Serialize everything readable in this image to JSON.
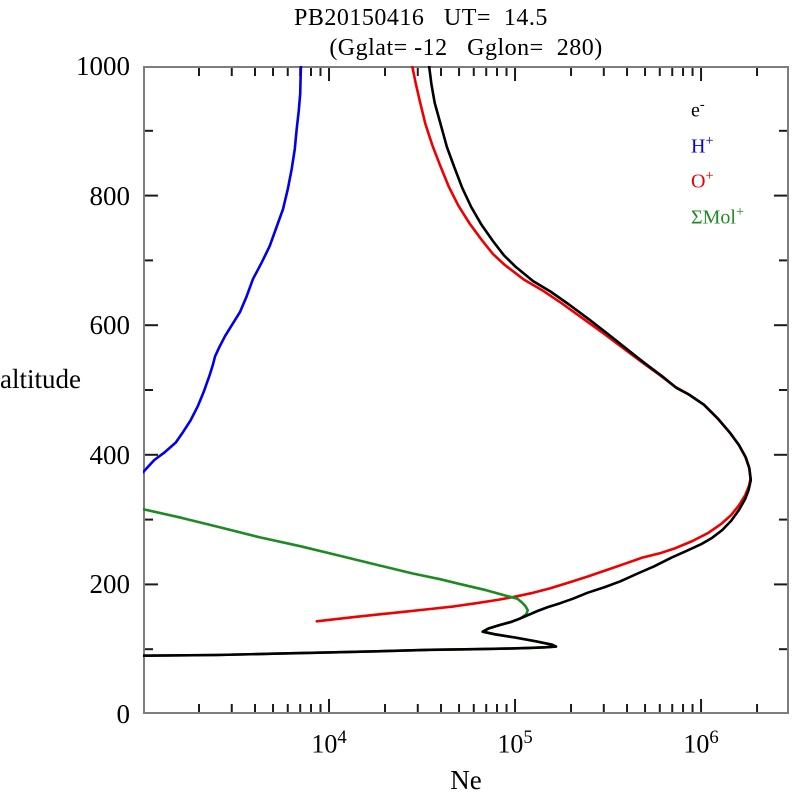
{
  "figure": {
    "title": "PB20150416   UT=  14.5",
    "subtitle": "(Gglat= -12   Gglon=  280)"
  },
  "axes": {
    "ylabel": "altitude",
    "xlabel": "Ne",
    "y_tick_labels": [
      1000,
      800,
      600,
      400,
      200,
      0
    ],
    "x_tick_labels": [
      {
        "base": "10",
        "sup": "4",
        "value": 10000
      },
      {
        "base": "10",
        "sup": "5",
        "value": 100000
      },
      {
        "base": "10",
        "sup": "6",
        "value": 1000000
      }
    ]
  },
  "legend": {
    "items": [
      {
        "base": "e",
        "sup": "-",
        "color": "#000000"
      },
      {
        "base": "H",
        "sup": "+",
        "color": "#0000ee"
      },
      {
        "base": "O",
        "sup": "+",
        "color": "#ee0000"
      },
      {
        "base": "ΣMol",
        "sup": "+",
        "color": "#1e8b22"
      }
    ]
  },
  "chart_data": {
    "type": "line",
    "title": "PB20150416 UT= 14.5",
    "subtitle": "(Gglat= -12 Gglon= 280)",
    "xlabel": "Ne",
    "ylabel": "altitude",
    "xscale": "log",
    "xlim": [
      1000,
      2970000
    ],
    "ylim": [
      0,
      1000
    ],
    "grid": false,
    "legend_position": "upper right inside",
    "frame_color": "#7d7d7d",
    "tick_color": "#1a1a1a",
    "x_major_ticks": [
      10000,
      100000,
      1000000
    ],
    "x_minor_ticks": [
      2000,
      3000,
      4000,
      5000,
      6000,
      7000,
      8000,
      9000,
      20000,
      30000,
      40000,
      50000,
      60000,
      70000,
      80000,
      90000,
      200000,
      300000,
      400000,
      500000,
      600000,
      700000,
      800000,
      900000,
      2000000
    ],
    "y_major_ticks": [
      200,
      400,
      600,
      800
    ],
    "y_minor_ticks": [
      100,
      300,
      500,
      700,
      900
    ],
    "series": [
      {
        "name": "O+",
        "color": "#ee0000",
        "points": [
          [
            8600,
            143
          ],
          [
            10500,
            146
          ],
          [
            14000,
            150
          ],
          [
            19000,
            154
          ],
          [
            26000,
            158
          ],
          [
            35000,
            162
          ],
          [
            47000,
            166
          ],
          [
            62000,
            171
          ],
          [
            80000,
            176
          ],
          [
            100000,
            181
          ],
          [
            125000,
            187
          ],
          [
            155000,
            194
          ],
          [
            195000,
            203
          ],
          [
            245000,
            212
          ],
          [
            310000,
            222
          ],
          [
            390000,
            232
          ],
          [
            480000,
            241
          ],
          [
            600000,
            248
          ],
          [
            730000,
            256
          ],
          [
            900000,
            267
          ],
          [
            1100000,
            280
          ],
          [
            1280000,
            293
          ],
          [
            1450000,
            307
          ],
          [
            1600000,
            322
          ],
          [
            1730000,
            338
          ],
          [
            1810000,
            352
          ],
          [
            1845000,
            363
          ],
          [
            1815000,
            380
          ],
          [
            1730000,
            397
          ],
          [
            1590000,
            416
          ],
          [
            1420000,
            435
          ],
          [
            1220000,
            457
          ],
          [
            1030000,
            478
          ],
          [
            850000,
            494
          ],
          [
            725000,
            505
          ],
          [
            600000,
            523
          ],
          [
            480000,
            543
          ],
          [
            380000,
            565
          ],
          [
            300000,
            587
          ],
          [
            230000,
            611
          ],
          [
            178000,
            634
          ],
          [
            140000,
            654
          ],
          [
            112000,
            670
          ],
          [
            88000,
            693
          ],
          [
            76000,
            710
          ],
          [
            66000,
            732
          ],
          [
            57000,
            757
          ],
          [
            49500,
            785
          ],
          [
            44000,
            814
          ],
          [
            39500,
            847
          ],
          [
            36000,
            877
          ],
          [
            33000,
            910
          ],
          [
            30800,
            945
          ],
          [
            29200,
            974
          ],
          [
            28000,
            1000
          ]
        ]
      },
      {
        "name": "Mol+",
        "color": "#1e8b22",
        "points": [
          [
            1000,
            316
          ],
          [
            1600,
            303
          ],
          [
            2600,
            288
          ],
          [
            4200,
            273
          ],
          [
            7000,
            259
          ],
          [
            11500,
            244
          ],
          [
            18800,
            229
          ],
          [
            28000,
            217
          ],
          [
            39500,
            208
          ],
          [
            50000,
            201
          ],
          [
            57000,
            197
          ],
          [
            70000,
            191
          ],
          [
            88000,
            183
          ],
          [
            103000,
            178
          ],
          [
            109000,
            172
          ],
          [
            114000,
            166
          ],
          [
            117000,
            160
          ],
          [
            115000,
            154
          ],
          [
            110000,
            150
          ],
          [
            106000,
            147
          ],
          [
            95000,
            142
          ],
          [
            82000,
            137
          ],
          [
            72000,
            132
          ],
          [
            67000,
            127
          ],
          [
            78000,
            123
          ],
          [
            100000,
            118
          ],
          [
            130000,
            112
          ],
          [
            158000,
            107
          ],
          [
            166000,
            104
          ],
          [
            145000,
            103
          ],
          [
            120000,
            102
          ],
          [
            90000,
            101
          ],
          [
            60000,
            100
          ],
          [
            35000,
            99
          ],
          [
            20000,
            97
          ],
          [
            10000,
            95
          ],
          [
            5000,
            93
          ],
          [
            2500,
            91
          ],
          [
            1000,
            90
          ]
        ]
      },
      {
        "name": "H+",
        "color": "#0000ee",
        "points": [
          [
            1000,
            373
          ],
          [
            1060,
            381
          ],
          [
            1150,
            392
          ],
          [
            1310,
            404
          ],
          [
            1500,
            419
          ],
          [
            1640,
            435
          ],
          [
            1800,
            453
          ],
          [
            1970,
            475
          ],
          [
            2120,
            497
          ],
          [
            2290,
            524
          ],
          [
            2370,
            538
          ],
          [
            2440,
            552
          ],
          [
            2580,
            567
          ],
          [
            2760,
            583
          ],
          [
            3000,
            600
          ],
          [
            3320,
            620
          ],
          [
            3600,
            644
          ],
          [
            3900,
            671
          ],
          [
            4350,
            697
          ],
          [
            4800,
            722
          ],
          [
            5200,
            750
          ],
          [
            5660,
            779
          ],
          [
            6000,
            810
          ],
          [
            6300,
            841
          ],
          [
            6550,
            872
          ],
          [
            6700,
            903
          ],
          [
            6870,
            930
          ],
          [
            7000,
            957
          ],
          [
            7060,
            1000
          ]
        ]
      },
      {
        "name": "electron",
        "color": "#000000",
        "points": [
          [
            1000,
            90
          ],
          [
            2500,
            91
          ],
          [
            5000,
            93
          ],
          [
            10000,
            95
          ],
          [
            20000,
            97
          ],
          [
            35000,
            99
          ],
          [
            60000,
            100
          ],
          [
            90000,
            101
          ],
          [
            120000,
            102
          ],
          [
            145000,
            103
          ],
          [
            166000,
            104
          ],
          [
            158000,
            107
          ],
          [
            130000,
            112
          ],
          [
            100000,
            118
          ],
          [
            78000,
            123
          ],
          [
            67000,
            127
          ],
          [
            72000,
            132
          ],
          [
            82000,
            137
          ],
          [
            95000,
            142
          ],
          [
            106000,
            147
          ],
          [
            118000,
            153
          ],
          [
            132000,
            159
          ],
          [
            150000,
            165
          ],
          [
            175000,
            171
          ],
          [
            205000,
            178
          ],
          [
            245000,
            187
          ],
          [
            305000,
            196
          ],
          [
            370000,
            205
          ],
          [
            450000,
            216
          ],
          [
            560000,
            228
          ],
          [
            690000,
            241
          ],
          [
            840000,
            252
          ],
          [
            1000000,
            262
          ],
          [
            1150000,
            272
          ],
          [
            1300000,
            284
          ],
          [
            1450000,
            298
          ],
          [
            1600000,
            315
          ],
          [
            1720000,
            331
          ],
          [
            1800000,
            345
          ],
          [
            1850000,
            361
          ],
          [
            1820000,
            379
          ],
          [
            1740000,
            396
          ],
          [
            1600000,
            415
          ],
          [
            1430000,
            434
          ],
          [
            1230000,
            456
          ],
          [
            1040000,
            477
          ],
          [
            860000,
            493
          ],
          [
            740000,
            503
          ],
          [
            620000,
            521
          ],
          [
            500000,
            541
          ],
          [
            400000,
            563
          ],
          [
            320000,
            585
          ],
          [
            250000,
            609
          ],
          [
            195000,
            632
          ],
          [
            155000,
            652
          ],
          [
            125000,
            668
          ],
          [
            100000,
            691
          ],
          [
            87000,
            708
          ],
          [
            76000,
            730
          ],
          [
            66000,
            755
          ],
          [
            58000,
            783
          ],
          [
            52000,
            812
          ],
          [
            47000,
            845
          ],
          [
            43000,
            875
          ],
          [
            40000,
            908
          ],
          [
            37000,
            943
          ],
          [
            35500,
            972
          ],
          [
            34500,
            1000
          ]
        ]
      }
    ]
  }
}
